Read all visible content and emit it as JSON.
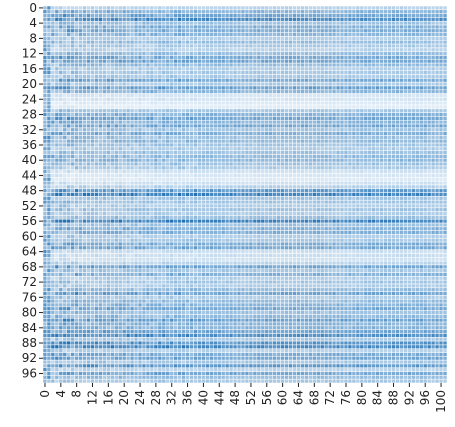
{
  "chart_data": {
    "type": "heatmap",
    "title": "",
    "xlabel": "",
    "ylabel": "",
    "n_rows": 99,
    "n_cols": 102,
    "x_ticks": [
      0,
      4,
      8,
      12,
      16,
      20,
      24,
      28,
      32,
      36,
      40,
      44,
      48,
      52,
      56,
      60,
      64,
      68,
      72,
      76,
      80,
      84,
      88,
      92,
      96,
      100
    ],
    "y_ticks": [
      0,
      4,
      8,
      12,
      16,
      20,
      24,
      28,
      32,
      36,
      40,
      44,
      48,
      52,
      56,
      60,
      64,
      68,
      72,
      76,
      80,
      84,
      88,
      92,
      96
    ],
    "x_tick_labels": [
      "0",
      "4",
      "8",
      "12",
      "16",
      "20",
      "24",
      "28",
      "32",
      "36",
      "40",
      "44",
      "48",
      "52",
      "56",
      "60",
      "64",
      "68",
      "72",
      "76",
      "80",
      "84",
      "88",
      "92",
      "96",
      "100"
    ],
    "y_tick_labels": [
      "0",
      "4",
      "8",
      "12",
      "16",
      "20",
      "24",
      "28",
      "32",
      "36",
      "40",
      "44",
      "48",
      "52",
      "56",
      "60",
      "64",
      "68",
      "72",
      "76",
      "80",
      "84",
      "88",
      "92",
      "96"
    ],
    "colormap": "Blues",
    "color_low": "#f7fbff",
    "color_high": "#2171b5",
    "cell_border_color": "#ffffff",
    "colorbar": false,
    "grid": false
  }
}
